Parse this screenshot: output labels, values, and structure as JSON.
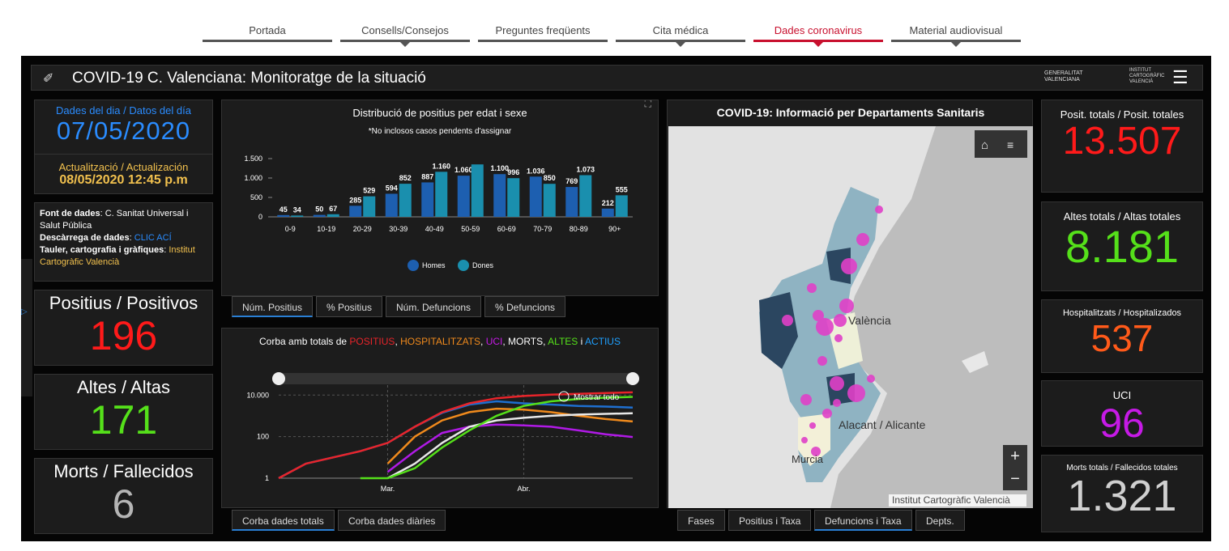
{
  "nav": [
    "Portada",
    "Consells/Consejos",
    "Preguntes freqüents",
    "Cita médica",
    "Dades coronavirus",
    "Material audiovisual"
  ],
  "header": {
    "title": "COVID-19 C. Valenciana: Monitoratge de la situació",
    "logo1": [
      "GENERALITAT",
      "VALENCIANA"
    ],
    "logo2": [
      "INSTITUT",
      "CARTOGRÀFIC",
      "VALENCIÀ"
    ]
  },
  "date_panel": {
    "label": "Dades del dia / Datos del día",
    "date": "07/05/2020",
    "update_label": "Actualització / Actualización",
    "update": "08/05/2020 12:45 p.m"
  },
  "sources": [
    {
      "label": "Font de dades",
      "value": "C. Sanitat Universal i Salut Pública"
    },
    {
      "label": "Descàrrega de dades",
      "value": "CLIC ACÍ"
    },
    {
      "label": "Tauler, cartografia i gràfiques",
      "value": "Institut Cartogràfic Valencià"
    }
  ],
  "daily": [
    {
      "label": "Positius / Positivos",
      "value": "196",
      "color": "#ff1a1a"
    },
    {
      "label": "Altes / Altas",
      "value": "171",
      "color": "#55e01a"
    },
    {
      "label": "Morts / Fallecidos",
      "value": "6",
      "color": "#b5b5b5"
    }
  ],
  "totals": [
    {
      "label": "Posit. totals / Posit. totales",
      "value": "13.507",
      "color": "#ff1a1a"
    },
    {
      "label": "Altes totals / Altas totales",
      "value": "8.181",
      "color": "#55e01a"
    },
    {
      "label": "Hospitalitzats / Hospitalizados",
      "value": "537",
      "color": "#ff5a1a"
    },
    {
      "label": "UCI",
      "value": "96",
      "color": "#c61ae6"
    },
    {
      "label": "Morts totals / Fallecidos totales",
      "value": "1.321",
      "color": "#d0d0d0"
    }
  ],
  "chart_data": [
    {
      "type": "bar",
      "title": "Distribució de positius per edat i sexe",
      "subtitle": "*No inclosos casos pendents d'assignar",
      "categories": [
        "0-9",
        "10-19",
        "20-29",
        "30-39",
        "40-49",
        "50-59",
        "60-69",
        "70-79",
        "80-89",
        "90+"
      ],
      "series": [
        {
          "name": "Homes",
          "color": "#1d5fb0",
          "values": [
            45,
            50,
            285,
            594,
            887,
            1060,
            1100,
            1036,
            769,
            212
          ],
          "value_labels": [
            "45",
            "50",
            "285",
            "594",
            "887",
            "1.060",
            "1.100",
            "1.036",
            "769",
            "212"
          ]
        },
        {
          "name": "Dones",
          "color": "#1a8fae",
          "values": [
            34,
            67,
            529,
            852,
            1160,
            1350,
            996,
            850,
            1073,
            555
          ],
          "value_labels": [
            "34",
            "67",
            "529",
            "852",
            "1.160",
            null,
            "996",
            "850",
            "1.073",
            "555"
          ]
        }
      ],
      "ylim": [
        0,
        1500
      ],
      "yticks": [
        0,
        500,
        {
          "value": 1000,
          "label": "1.000"
        },
        {
          "value": 1500,
          "label": "1.500"
        }
      ]
    },
    {
      "type": "line",
      "title_parts": [
        {
          "text": "Corba amb totals de ",
          "color": "#ffffff"
        },
        {
          "text": "POSITIUS",
          "color": "#e8242a"
        },
        {
          "text": ", ",
          "color": "#ffffff"
        },
        {
          "text": "HOSPITALITZATS",
          "color": "#f08a1c"
        },
        {
          "text": ", ",
          "color": "#ffffff"
        },
        {
          "text": "UCI",
          "color": "#c61ae6"
        },
        {
          "text": ", MORTS, ",
          "color": "#ffffff"
        },
        {
          "text": "ALTES",
          "color": "#55e01a"
        },
        {
          "text": " i ",
          "color": "#ffffff"
        },
        {
          "text": "ACTIUS",
          "color": "#1ea0ff"
        }
      ],
      "zoom_label": "Mostrar todo",
      "log": true,
      "categories": [
        null,
        null,
        null,
        null,
        "Mar.",
        null,
        null,
        null,
        null,
        "Abr.",
        null,
        null,
        null,
        null
      ],
      "series": [
        {
          "name": "Actius",
          "color": "#1e6fd0",
          "values": [
            1,
            5,
            10,
            20,
            50,
            300,
            1400,
            3500,
            5000,
            4000,
            3500,
            3000,
            2800,
            2500
          ]
        },
        {
          "name": "Positius",
          "color": "#e8242a",
          "values": [
            1,
            5,
            10,
            20,
            50,
            300,
            1500,
            4000,
            7000,
            9000,
            10500,
            11500,
            12500,
            13507
          ]
        },
        {
          "name": "Hospitalitzats",
          "color": "#f08a1c",
          "values": [
            null,
            null,
            null,
            null,
            5,
            100,
            600,
            1500,
            2200,
            2000,
            1500,
            1000,
            700,
            537
          ]
        },
        {
          "name": "UCI",
          "color": "#b01ae6",
          "values": [
            null,
            null,
            null,
            null,
            2,
            20,
            150,
            300,
            380,
            350,
            300,
            200,
            130,
            96
          ]
        },
        {
          "name": "Morts",
          "color": "#e8e8e8",
          "values": [
            null,
            null,
            null,
            null,
            1,
            5,
            50,
            300,
            600,
            800,
            1000,
            1150,
            1250,
            1321
          ]
        },
        {
          "name": "Altes",
          "color": "#55e01a",
          "values": [
            null,
            null,
            null,
            1,
            1,
            3,
            30,
            200,
            1000,
            3000,
            5000,
            6500,
            7500,
            8181
          ]
        }
      ],
      "ylim": [
        1,
        30000
      ],
      "yticks": [
        1,
        100,
        {
          "value": 10000,
          "label": "10.000"
        }
      ]
    }
  ],
  "bar_tabs": [
    "Núm. Positius",
    "% Positius",
    "Núm. Defuncions",
    "% Defuncions"
  ],
  "line_tabs": [
    "Corba dades totals",
    "Corba dades diàries"
  ],
  "map": {
    "title": "COVID-19: Informació per Departaments Sanitaris",
    "places": [
      "València",
      "Alacant / Alicante",
      "Murcia"
    ],
    "attribution": "Institut Cartogràfic Valencià",
    "tabs": [
      "Fases",
      "Positius i Taxa",
      "Defuncions i Taxa",
      "Depts."
    ]
  }
}
